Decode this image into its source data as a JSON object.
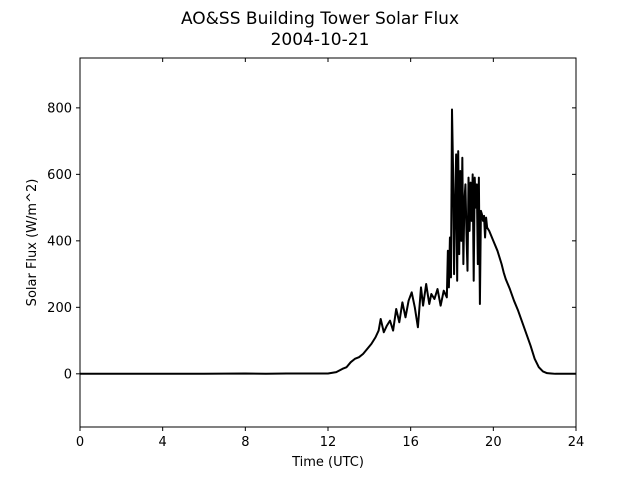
{
  "chart_data": {
    "type": "line",
    "title": "AO&SS Building Tower Solar Flux",
    "subtitle": "2004-10-21",
    "xlabel": "Time (UTC)",
    "ylabel": "Solar Flux (W/m^2)",
    "xlim": [
      0,
      24
    ],
    "ylim": [
      -160,
      950
    ],
    "xticks": [
      0,
      4,
      8,
      12,
      16,
      20,
      24
    ],
    "yticks": [
      0,
      200,
      400,
      600,
      800
    ],
    "grid": false,
    "series": [
      {
        "color": "#000000",
        "x": [
          0,
          2,
          4,
          6,
          8,
          9,
          10,
          11,
          12,
          12.4,
          12.7,
          12.9,
          13.1,
          13.3,
          13.5,
          13.7,
          13.9,
          14.1,
          14.3,
          14.45,
          14.55,
          14.7,
          14.85,
          15.0,
          15.15,
          15.3,
          15.45,
          15.6,
          15.75,
          15.9,
          16.05,
          16.2,
          16.35,
          16.5,
          16.6,
          16.75,
          16.9,
          17.0,
          17.15,
          17.3,
          17.45,
          17.6,
          17.75,
          17.8,
          17.85,
          17.9,
          17.95,
          18.0,
          18.05,
          18.1,
          18.15,
          18.2,
          18.25,
          18.3,
          18.35,
          18.4,
          18.45,
          18.5,
          18.55,
          18.6,
          18.65,
          18.7,
          18.75,
          18.8,
          18.85,
          18.9,
          18.95,
          19.0,
          19.05,
          19.1,
          19.15,
          19.2,
          19.25,
          19.3,
          19.35,
          19.4,
          19.45,
          19.5,
          19.55,
          19.6,
          19.65,
          19.7,
          19.8,
          19.9,
          20.0,
          20.1,
          20.2,
          20.3,
          20.4,
          20.5,
          20.6,
          20.8,
          21.0,
          21.2,
          21.4,
          21.6,
          21.8,
          22.0,
          22.2,
          22.4,
          22.6,
          22.8,
          23.0,
          23.2,
          23.5,
          24.0
        ],
        "y": [
          0,
          0,
          0,
          0,
          1,
          0,
          1,
          1,
          1,
          5,
          15,
          20,
          35,
          45,
          50,
          60,
          75,
          90,
          110,
          130,
          165,
          125,
          145,
          160,
          130,
          195,
          155,
          215,
          170,
          220,
          245,
          200,
          140,
          260,
          205,
          270,
          210,
          240,
          225,
          255,
          205,
          250,
          230,
          370,
          260,
          410,
          290,
          795,
          620,
          300,
          510,
          660,
          280,
          670,
          360,
          610,
          400,
          650,
          330,
          520,
          570,
          420,
          310,
          590,
          430,
          575,
          460,
          600,
          280,
          590,
          500,
          570,
          330,
          590,
          210,
          490,
          480,
          460,
          475,
          410,
          470,
          440,
          430,
          415,
          400,
          385,
          370,
          350,
          330,
          305,
          285,
          255,
          220,
          190,
          155,
          120,
          85,
          45,
          20,
          7,
          2,
          1,
          0,
          0,
          0,
          0
        ]
      }
    ]
  }
}
